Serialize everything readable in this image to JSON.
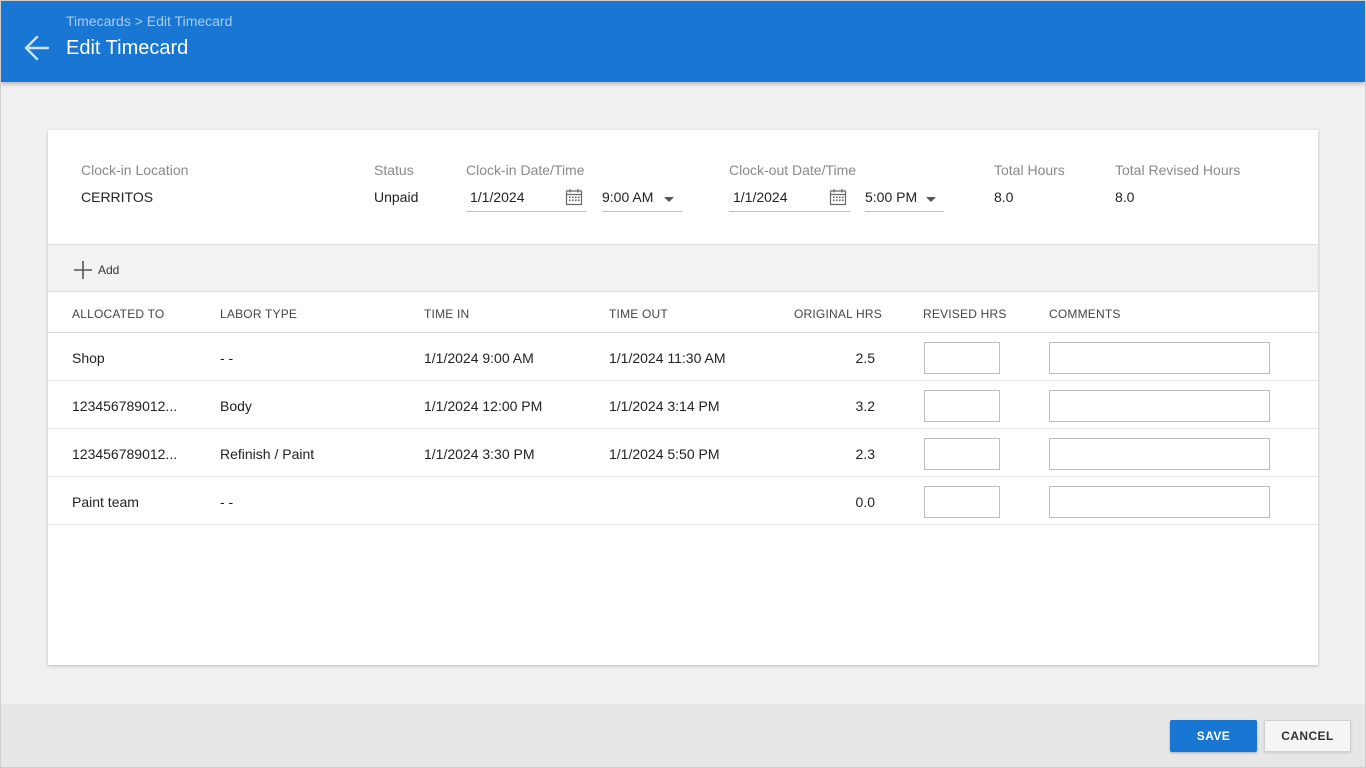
{
  "header": {
    "breadcrumb_root": "Timecards",
    "breadcrumb_sep": ">",
    "breadcrumb_current": "Edit Timecard",
    "title": "Edit Timecard",
    "back_icon": "arrow-left-icon"
  },
  "summary": {
    "location_label": "Clock-in Location",
    "location_value": "CERRITOS",
    "status_label": "Status",
    "status_value": "Unpaid",
    "clock_in_label": "Clock-in Date/Time",
    "clock_in_date": "1/1/2024",
    "clock_in_time": "9:00 AM",
    "clock_out_label": "Clock-out Date/Time",
    "clock_out_date": "1/1/2024",
    "clock_out_time": "5:00 PM",
    "total_hours_label": "Total Hours",
    "total_hours_value": "8.0",
    "total_revised_label": "Total Revised Hours",
    "total_revised_value": "8.0"
  },
  "toolbar": {
    "add_label": "Add"
  },
  "table": {
    "columns": [
      "ALLOCATED TO",
      "LABOR TYPE",
      "TIME IN",
      "TIME OUT",
      "ORIGINAL HRS",
      "REVISED HRS",
      "COMMENTS"
    ],
    "rows": [
      {
        "allocated_to": "Shop",
        "labor_type": "- -",
        "time_in": "1/1/2024 9:00 AM",
        "time_out": "1/1/2024 11:30 AM",
        "original_hrs": "2.5",
        "revised_hrs": "",
        "comments": ""
      },
      {
        "allocated_to": "123456789012...",
        "labor_type": "Body",
        "time_in": "1/1/2024 12:00 PM",
        "time_out": "1/1/2024 3:14 PM",
        "original_hrs": "3.2",
        "revised_hrs": "",
        "comments": ""
      },
      {
        "allocated_to": "123456789012...",
        "labor_type": "Refinish / Paint",
        "time_in": "1/1/2024 3:30 PM",
        "time_out": "1/1/2024 5:50 PM",
        "original_hrs": "2.3",
        "revised_hrs": "",
        "comments": ""
      },
      {
        "allocated_to": "Paint team",
        "labor_type": "- -",
        "time_in": "",
        "time_out": "",
        "original_hrs": "0.0",
        "revised_hrs": "",
        "comments": ""
      }
    ]
  },
  "footer": {
    "save_label": "SAVE",
    "cancel_label": "CANCEL"
  },
  "colors": {
    "primary": "#1976d2",
    "background": "#f0f0f0",
    "footer": "#e6e6e6"
  }
}
